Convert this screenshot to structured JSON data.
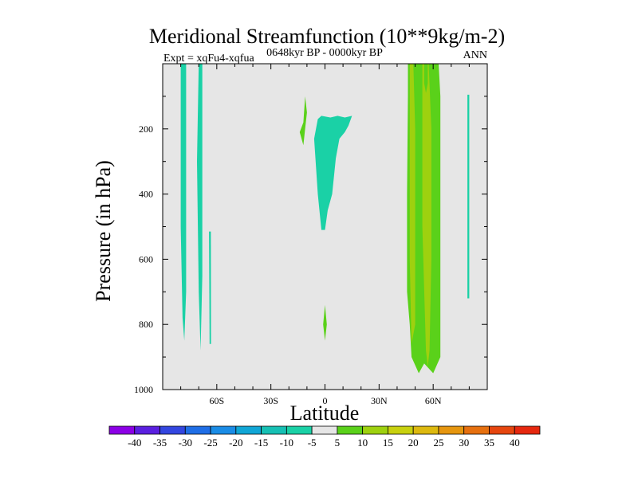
{
  "chart_data": {
    "type": "filled-contour",
    "title": "Meridional Streamfunction (10**9kg/m-2)",
    "subtitle": "0648kyr BP - 0000kyr BP",
    "left_label": "Expt = xqFu4-xqfua",
    "right_label": "ANN",
    "xlabel": "Latitude",
    "ylabel": "Pressure (in hPa)",
    "xlim": [
      -90,
      90
    ],
    "ylim": [
      0,
      1000
    ],
    "y_inverted": true,
    "x_ticks": [
      {
        "value": -60,
        "label": "60S"
      },
      {
        "value": -30,
        "label": "30S"
      },
      {
        "value": 0,
        "label": "0"
      },
      {
        "value": 30,
        "label": "30N"
      },
      {
        "value": 60,
        "label": "60N"
      }
    ],
    "y_ticks": [
      {
        "value": 200,
        "label": "200"
      },
      {
        "value": 400,
        "label": "400"
      },
      {
        "value": 600,
        "label": "600"
      },
      {
        "value": 800,
        "label": "800"
      },
      {
        "value": 1000,
        "label": "1000"
      }
    ],
    "background_color": "#e6e6e6",
    "colorbar": {
      "labels": [
        "-40",
        "-35",
        "-30",
        "-25",
        "-20",
        "-15",
        "-10",
        "-5",
        "5",
        "10",
        "15",
        "20",
        "25",
        "30",
        "35",
        "40"
      ],
      "colors": [
        "#8c00e6",
        "#5a1fe0",
        "#3346e0",
        "#1f6ee6",
        "#1a8ce6",
        "#10a6d6",
        "#16c0b4",
        "#1ad1a6",
        "#e6e6e6",
        "#5ad11a",
        "#9ed10f",
        "#c8d10f",
        "#ddb90f",
        "#e6960f",
        "#e6700f",
        "#e6460f",
        "#e6280f"
      ]
    },
    "contour_regions": [
      {
        "level": "-5 to -10",
        "color": "#1ad1a6",
        "points": [
          [
            -80,
            0
          ],
          [
            -77,
            0
          ],
          [
            -77,
            700
          ],
          [
            -78,
            850
          ],
          [
            -79,
            780
          ],
          [
            -80,
            500
          ]
        ]
      },
      {
        "level": "-5 to -10",
        "color": "#1ad1a6",
        "points": [
          [
            -70,
            0
          ],
          [
            -68,
            0
          ],
          [
            -68,
            650
          ],
          [
            -69,
            880
          ],
          [
            -70,
            700
          ],
          [
            -71,
            300
          ]
        ]
      },
      {
        "level": "-5 to -10",
        "color": "#1ad1a6",
        "points": [
          [
            -64.3,
            515
          ],
          [
            -63.3,
            515
          ],
          [
            -63.2,
            860
          ],
          [
            -64,
            860
          ]
        ]
      },
      {
        "level": "-5 to -10",
        "color": "#1ad1a6",
        "points": [
          [
            -4,
            400
          ],
          [
            -6,
            230
          ],
          [
            -4,
            170
          ],
          [
            -2,
            160
          ],
          [
            3,
            165
          ],
          [
            7,
            160
          ],
          [
            11,
            165
          ],
          [
            15,
            160
          ],
          [
            13,
            190
          ],
          [
            11,
            210
          ],
          [
            8,
            230
          ],
          [
            6,
            290
          ],
          [
            4,
            400
          ],
          [
            1.5,
            450
          ],
          [
            0,
            510
          ],
          [
            -2,
            510
          ]
        ]
      },
      {
        "level": "-5 to -10",
        "color": "#1ad1a6",
        "points": [
          [
            79,
            95
          ],
          [
            80,
            95
          ],
          [
            80,
            720
          ],
          [
            79,
            720
          ]
        ]
      },
      {
        "level": "5 to 10",
        "color": "#5ad11a",
        "points": [
          [
            -14,
            210
          ],
          [
            -12,
            180
          ],
          [
            -11,
            100
          ],
          [
            -10,
            150
          ],
          [
            -11,
            200
          ],
          [
            -12,
            250
          ]
        ]
      },
      {
        "level": "5 to 10",
        "color": "#5ad11a",
        "points": [
          [
            0,
            740
          ],
          [
            1,
            800
          ],
          [
            0,
            850
          ],
          [
            -1,
            800
          ]
        ]
      },
      {
        "level": "5 to 10",
        "color": "#5ad11a",
        "points": [
          [
            46,
            0
          ],
          [
            63,
            0
          ],
          [
            64,
            100
          ],
          [
            64,
            900
          ],
          [
            60,
            950
          ],
          [
            55,
            920
          ],
          [
            52,
            950
          ],
          [
            48,
            900
          ],
          [
            47,
            800
          ],
          [
            45.5,
            700
          ],
          [
            45.5,
            400
          ],
          [
            46,
            100
          ]
        ]
      },
      {
        "level": "10 to 15",
        "color": "#9ed10f",
        "points": [
          [
            47,
            0
          ],
          [
            49,
            0
          ],
          [
            50,
            200
          ],
          [
            50,
            800
          ],
          [
            48,
            860
          ],
          [
            47,
            600
          ]
        ]
      },
      {
        "level": "10 to 15",
        "color": "#9ed10f",
        "points": [
          [
            54,
            0
          ],
          [
            57.5,
            0
          ],
          [
            59,
            200
          ],
          [
            59,
            600
          ],
          [
            58,
            880
          ],
          [
            57,
            930
          ],
          [
            56,
            880
          ],
          [
            54,
            500
          ]
        ]
      },
      {
        "level": "5 to 10",
        "color": "#5ad11a",
        "points": [
          [
            55,
            0
          ],
          [
            57,
            0
          ],
          [
            57,
            60
          ],
          [
            56,
            90
          ],
          [
            55,
            60
          ]
        ]
      }
    ]
  }
}
